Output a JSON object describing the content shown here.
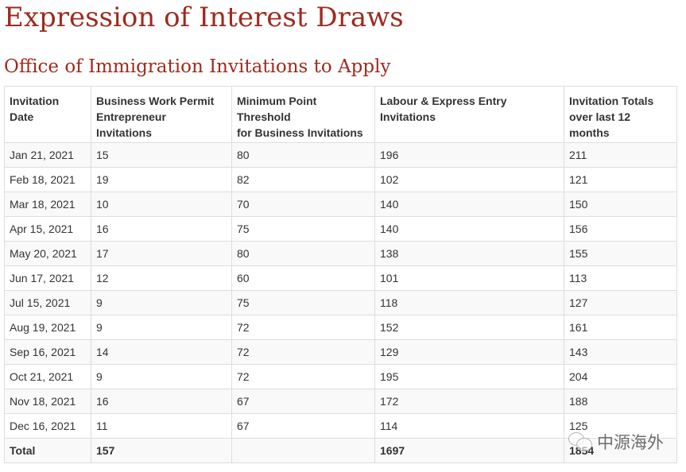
{
  "title": "Expression of Interest Draws",
  "subtitle": "Office of Immigration Invitations to Apply",
  "table": {
    "headers": [
      "Invitation Date",
      "Business Work Permit Entrepreneur Invitations",
      "Minimum Point Threshold for Business Invitations",
      "Labour & Express Entry Invitations",
      "Invitation Totals over last 12 months"
    ],
    "rows": [
      [
        "Jan 21, 2021",
        "15",
        "80",
        "196",
        "211"
      ],
      [
        "Feb 18, 2021",
        "19",
        "82",
        "102",
        "121"
      ],
      [
        "Mar 18, 2021",
        "10",
        "70",
        "140",
        "150"
      ],
      [
        "Apr 15, 2021",
        "16",
        "75",
        "140",
        "156"
      ],
      [
        "May 20, 2021",
        "17",
        "80",
        "138",
        "155"
      ],
      [
        "Jun 17, 2021",
        "12",
        "60",
        "101",
        "113"
      ],
      [
        "Jul 15, 2021",
        "9",
        "75",
        "118",
        "127"
      ],
      [
        "Aug 19, 2021",
        "9",
        "72",
        "152",
        "161"
      ],
      [
        "Sep 16, 2021",
        "14",
        "72",
        "129",
        "143"
      ],
      [
        "Oct 21, 2021",
        "9",
        "72",
        "195",
        "204"
      ],
      [
        "Nov 18, 2021",
        "16",
        "67",
        "172",
        "188"
      ],
      [
        "Dec 16, 2021",
        "11",
        "67",
        "114",
        "125"
      ]
    ],
    "total": [
      "Total",
      "157",
      "",
      "1697",
      "1854"
    ]
  },
  "watermark": {
    "text": "中源海外",
    "icon": "wechat-icon"
  }
}
